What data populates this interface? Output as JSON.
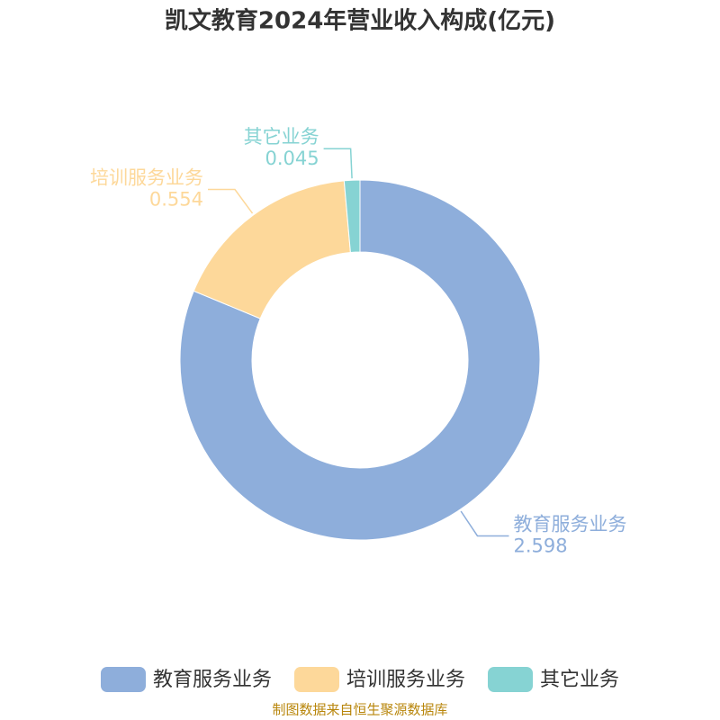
{
  "chart_data": {
    "type": "donut",
    "title": "凯文教育2024年营业收入构成(亿元)",
    "categories": [
      "教育服务业务",
      "培训服务业务",
      "其它业务"
    ],
    "values": [
      2.598,
      0.554,
      0.045
    ],
    "colors": [
      "#8eaedb",
      "#fdd89a",
      "#86d3d3"
    ],
    "legend": "bottom",
    "source": "制图数据来自恒生聚源数据库"
  }
}
